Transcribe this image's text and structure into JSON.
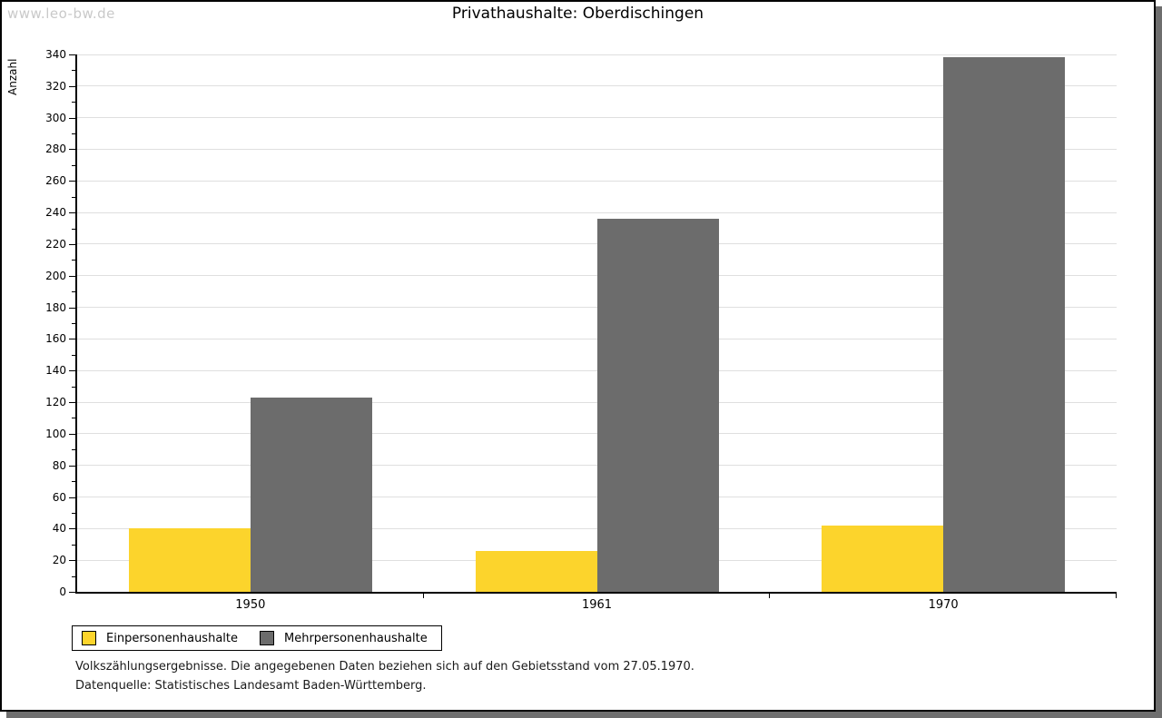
{
  "watermark": "www.leo-bw.de",
  "chart_data": {
    "type": "bar",
    "title": "Privathaushalte: Oberdischingen",
    "ylabel": "Anzahl",
    "xlabel": "",
    "categories": [
      "1950",
      "1961",
      "1970"
    ],
    "series": [
      {
        "name": "Einpersonenhaushalte",
        "color": "#FCD42C",
        "values": [
          40,
          26,
          42
        ]
      },
      {
        "name": "Mehrpersonenhaushalte",
        "color": "#6C6C6C",
        "values": [
          123,
          236,
          338
        ]
      }
    ],
    "ylim": [
      0,
      340
    ],
    "ytick_major": 20,
    "ytick_minor": 10,
    "grid": true,
    "legend_position": "bottom-left",
    "colors": {
      "gridline": "#DFDFDF",
      "axis": "#000000",
      "watermark": "#C9C9C9",
      "frame_shadow": "#6E6E6E"
    }
  },
  "notes": [
    "Volkszählungsergebnisse. Die angegebenen Daten beziehen sich auf den Gebietsstand vom 27.05.1970.",
    "Datenquelle: Statistisches Landesamt Baden-Württemberg."
  ]
}
